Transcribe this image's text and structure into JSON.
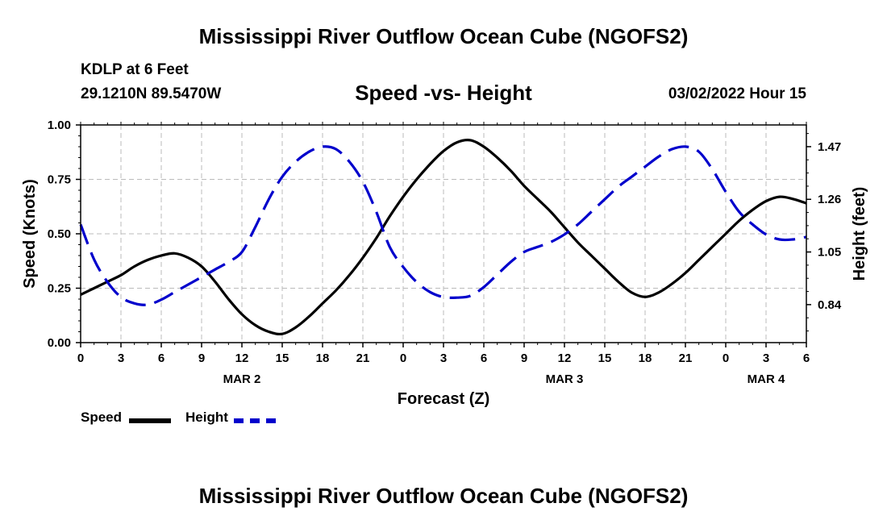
{
  "page": {
    "title": "Mississippi River Outflow Ocean Cube (NGOFS2)",
    "footer_title": "Mississippi River Outflow Ocean Cube (NGOFS2)",
    "station": "KDLP at 6 Feet",
    "coords": "29.1210N  89.5470W",
    "subtitle": "Speed -vs- Height",
    "datetime": "03/02/2022 Hour 15"
  },
  "legend": {
    "speed": "Speed",
    "height": "Height"
  },
  "colors": {
    "speed": "#000000",
    "height": "#0000cc",
    "grid": "#bbbbbb"
  },
  "chart_data": {
    "type": "line",
    "title": "Speed -vs- Height",
    "xlabel": "Forecast (Z)",
    "ylabel": "Speed (Knots)",
    "y2label": "Height (feet)",
    "x_range_hours": [
      0,
      54
    ],
    "x_ticks": [
      {
        "h": 0,
        "label": "0"
      },
      {
        "h": 3,
        "label": "3"
      },
      {
        "h": 6,
        "label": "6"
      },
      {
        "h": 9,
        "label": "9"
      },
      {
        "h": 12,
        "label": "12"
      },
      {
        "h": 15,
        "label": "15"
      },
      {
        "h": 18,
        "label": "18"
      },
      {
        "h": 21,
        "label": "21"
      },
      {
        "h": 24,
        "label": "0"
      },
      {
        "h": 27,
        "label": "3"
      },
      {
        "h": 30,
        "label": "6"
      },
      {
        "h": 33,
        "label": "9"
      },
      {
        "h": 36,
        "label": "12"
      },
      {
        "h": 39,
        "label": "15"
      },
      {
        "h": 42,
        "label": "18"
      },
      {
        "h": 45,
        "label": "21"
      },
      {
        "h": 48,
        "label": "0"
      },
      {
        "h": 51,
        "label": "3"
      },
      {
        "h": 54,
        "label": "6"
      }
    ],
    "date_labels": [
      {
        "h": 12,
        "label": "MAR 2"
      },
      {
        "h": 36,
        "label": "MAR 3"
      },
      {
        "h": 51,
        "label": "MAR 4"
      }
    ],
    "ylim": [
      0,
      1
    ],
    "y_ticks": [
      "0.00",
      "0.25",
      "0.50",
      "0.75",
      "1.00"
    ],
    "y2lim": [
      0.6885,
      1.5566
    ],
    "y2_ticks": [
      "0.84",
      "1.05",
      "1.26",
      "1.47"
    ],
    "series": [
      {
        "name": "Speed",
        "axis": "left",
        "style": "solid",
        "x": [
          0,
          1,
          2,
          3,
          4,
          5,
          6,
          7,
          8,
          9,
          10,
          11,
          12,
          13,
          14,
          15,
          16,
          17,
          18,
          19,
          20,
          21,
          22,
          23,
          24,
          25,
          26,
          27,
          28,
          29,
          30,
          31,
          32,
          33,
          34,
          35,
          36,
          37,
          38,
          39,
          40,
          41,
          42,
          43,
          44,
          45,
          46,
          47,
          48,
          49,
          50,
          51,
          52,
          53,
          54
        ],
        "values": [
          0.22,
          0.25,
          0.28,
          0.31,
          0.35,
          0.38,
          0.4,
          0.41,
          0.39,
          0.35,
          0.28,
          0.2,
          0.13,
          0.08,
          0.05,
          0.04,
          0.07,
          0.12,
          0.18,
          0.24,
          0.31,
          0.39,
          0.48,
          0.58,
          0.67,
          0.75,
          0.82,
          0.88,
          0.92,
          0.93,
          0.9,
          0.85,
          0.79,
          0.72,
          0.66,
          0.6,
          0.53,
          0.46,
          0.4,
          0.34,
          0.28,
          0.23,
          0.21,
          0.23,
          0.27,
          0.32,
          0.38,
          0.44,
          0.5,
          0.56,
          0.61,
          0.65,
          0.67,
          0.66,
          0.64
        ]
      },
      {
        "name": "Height",
        "axis": "right",
        "style": "dashed",
        "x": [
          0,
          1,
          2,
          3,
          4,
          5,
          6,
          7,
          8,
          9,
          10,
          11,
          12,
          13,
          14,
          15,
          16,
          17,
          18,
          19,
          20,
          21,
          22,
          23,
          24,
          25,
          26,
          27,
          28,
          29,
          30,
          31,
          32,
          33,
          34,
          35,
          36,
          37,
          38,
          39,
          40,
          41,
          42,
          43,
          44,
          45,
          46,
          47,
          48,
          49,
          50,
          51,
          52,
          53,
          54
        ],
        "values": [
          1.16,
          1.02,
          0.93,
          0.87,
          0.845,
          0.84,
          0.86,
          0.89,
          0.92,
          0.95,
          0.98,
          1.01,
          1.05,
          1.15,
          1.26,
          1.35,
          1.41,
          1.45,
          1.47,
          1.46,
          1.41,
          1.33,
          1.21,
          1.07,
          0.99,
          0.93,
          0.89,
          0.87,
          0.868,
          0.875,
          0.91,
          0.96,
          1.01,
          1.05,
          1.07,
          1.09,
          1.12,
          1.16,
          1.21,
          1.26,
          1.31,
          1.35,
          1.39,
          1.43,
          1.46,
          1.47,
          1.45,
          1.38,
          1.29,
          1.21,
          1.16,
          1.12,
          1.1,
          1.1,
          1.11
        ]
      }
    ]
  }
}
